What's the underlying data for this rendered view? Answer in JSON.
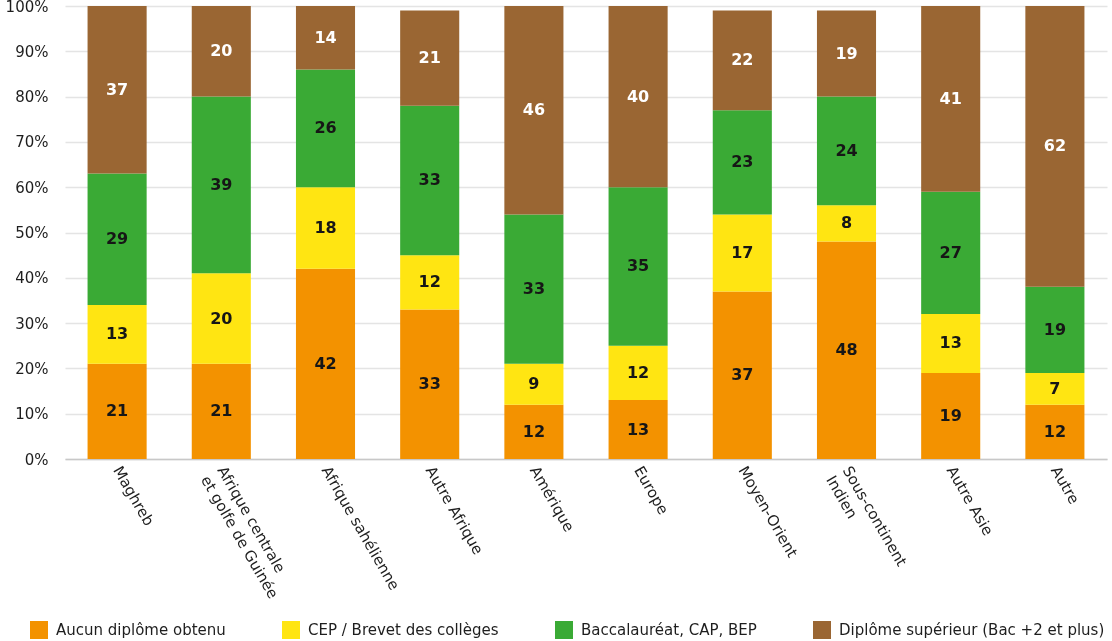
{
  "chart_data": {
    "type": "bar",
    "stacked": true,
    "categories": [
      "Maghreb",
      "Afrique centrale et golfe de Guinée",
      "Afrique sahélienne",
      "Autre Afrique",
      "Amérique",
      "Europe",
      "Moyen-Orient",
      "Sous-continent Indien",
      "Autre Asie",
      "Autre"
    ],
    "series": [
      {
        "name": "Aucun diplôme obtenu",
        "color": "#f39200",
        "values": [
          21,
          21,
          42,
          33,
          12,
          13,
          37,
          48,
          19,
          12
        ]
      },
      {
        "name": "CEP / Brevet des collèges",
        "color": "#ffe512",
        "values": [
          13,
          20,
          18,
          12,
          9,
          12,
          17,
          8,
          13,
          7
        ]
      },
      {
        "name": "Baccalauréat, CAP, BEP",
        "color": "#3aaa35",
        "values": [
          29,
          39,
          26,
          33,
          33,
          35,
          23,
          24,
          27,
          19
        ]
      },
      {
        "name": "Diplôme supérieur (Bac +2 et plus)",
        "color": "#9a6633",
        "values": [
          37,
          20,
          14,
          21,
          46,
          40,
          22,
          19,
          41,
          62
        ]
      }
    ],
    "ylim": [
      0,
      100
    ],
    "yticks": [
      {
        "value": 0,
        "label": "0%"
      },
      {
        "value": 10,
        "label": "10%"
      },
      {
        "value": 20,
        "label": "20%"
      },
      {
        "value": 30,
        "label": "30%"
      },
      {
        "value": 40,
        "label": "40%"
      },
      {
        "value": 50,
        "label": "50%"
      },
      {
        "value": 60,
        "label": "60%"
      },
      {
        "value": 70,
        "label": "70%"
      },
      {
        "value": 80,
        "label": "80%"
      },
      {
        "value": 90,
        "label": "90%"
      },
      {
        "value": 100,
        "label": "100%"
      }
    ],
    "grid": "y",
    "legend": "bottom",
    "data_labels": true
  }
}
